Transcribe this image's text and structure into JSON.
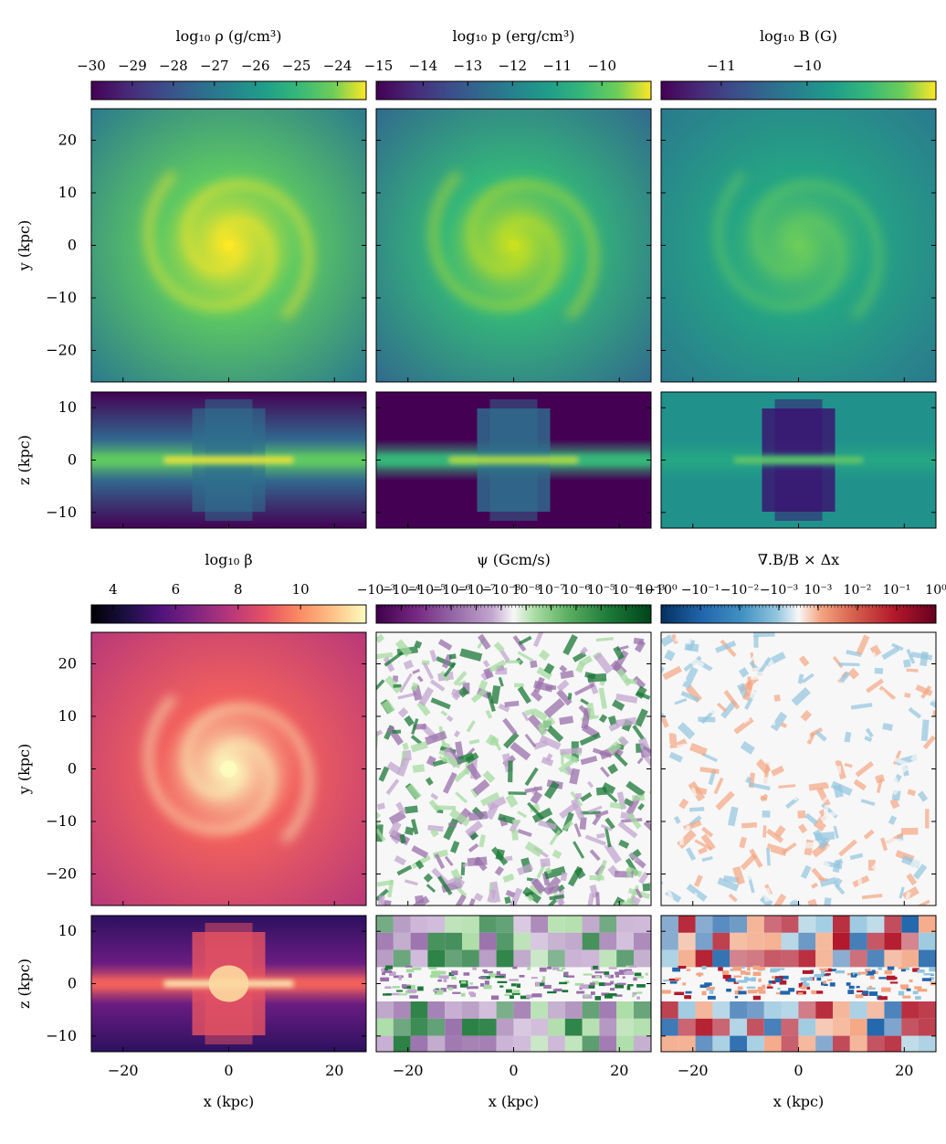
{
  "chart_data": [
    {
      "type": "heatmap",
      "colorbar": {
        "label": "log₁₀ ρ (g/cm³)",
        "ticks": [
          "−30",
          "−29",
          "−28",
          "−27",
          "−26",
          "−25",
          "−24"
        ],
        "tick_values": [
          -30,
          -29,
          -28,
          -27,
          -26,
          -25,
          -24
        ],
        "range": [
          -30,
          -23.3
        ],
        "colormap": "viridis"
      },
      "face_on": {
        "xlim": [
          -26,
          26
        ],
        "ylim": [
          -26,
          26
        ],
        "ylabel": "y (kpc)",
        "yticks": [
          "20",
          "10",
          "0",
          "−10",
          "−20"
        ],
        "ytick_values": [
          20,
          10,
          0,
          -10,
          -20
        ]
      },
      "edge_on": {
        "xlim": [
          -26,
          26
        ],
        "zlim": [
          -13,
          13
        ],
        "ylabel": "z (kpc)",
        "yticks": [
          "10",
          "0",
          "−10"
        ],
        "ytick_values": [
          10,
          0,
          -10
        ]
      },
      "colors": {
        "core": "#fde725",
        "mid": "#5ec962",
        "edge": "#2a788e",
        "bg": "#440154"
      }
    },
    {
      "type": "heatmap",
      "colorbar": {
        "label": "log₁₀ p (erg/cm³)",
        "ticks": [
          "−15",
          "−14",
          "−13",
          "−12",
          "−11",
          "−10"
        ],
        "tick_values": [
          -15,
          -14,
          -13,
          -12,
          -11,
          -10
        ],
        "range": [
          -15.05,
          -8.9
        ],
        "colormap": "viridis"
      },
      "face_on": {
        "xlim": [
          -26,
          26
        ],
        "ylim": [
          -26,
          26
        ]
      },
      "edge_on": {
        "xlim": [
          -26,
          26
        ],
        "zlim": [
          -13,
          13
        ]
      },
      "colors": {
        "core": "#c8e020",
        "mid": "#35b779",
        "edge": "#31688e",
        "bg": "#440154"
      }
    },
    {
      "type": "heatmap",
      "colorbar": {
        "label": "log₁₀ B (G)",
        "ticks": [
          "−11",
          "−10"
        ],
        "tick_values": [
          -11,
          -10
        ],
        "range": [
          -11.7,
          -8.5
        ],
        "colormap": "viridis"
      },
      "face_on": {
        "xlim": [
          -26,
          26
        ],
        "ylim": [
          -26,
          26
        ]
      },
      "edge_on": {
        "xlim": [
          -26,
          26
        ],
        "zlim": [
          -13,
          13
        ]
      },
      "colors": {
        "core": "#6ccd5a",
        "mid": "#25a584",
        "edge": "#2a788e",
        "bg": "#21918c"
      }
    },
    {
      "type": "heatmap",
      "colorbar": {
        "label": "log₁₀ β",
        "ticks": [
          "4",
          "6",
          "8",
          "10"
        ],
        "tick_values": [
          4,
          6,
          8,
          10
        ],
        "range": [
          3.3,
          12.1
        ],
        "colormap": "magma"
      },
      "face_on": {
        "xlim": [
          -26,
          26
        ],
        "ylim": [
          -26,
          26
        ],
        "ylabel": "y (kpc)",
        "yticks": [
          "20",
          "10",
          "0",
          "−10",
          "−20"
        ],
        "ytick_values": [
          20,
          10,
          0,
          -10,
          -20
        ]
      },
      "edge_on": {
        "xlim": [
          -26,
          26
        ],
        "zlim": [
          -13,
          13
        ],
        "ylabel": "z (kpc)",
        "yticks": [
          "10",
          "0",
          "−10"
        ],
        "ytick_values": [
          10,
          0,
          -10
        ],
        "xlabel": "x (kpc)",
        "xticks": [
          "−20",
          "0",
          "20"
        ],
        "xtick_values": [
          -20,
          0,
          20
        ]
      },
      "colors": {
        "core": "#fcfdbf",
        "mid": "#f1605d",
        "edge": "#b73779",
        "bg": "#2c115f"
      }
    },
    {
      "type": "heatmap",
      "colorbar": {
        "label": "ψ (Gcm/s)",
        "ticks": [
          "−10⁻³",
          "−10⁻⁴",
          "−10⁻⁵",
          "−10⁻⁶",
          "−10⁻⁷",
          "−10⁻⁸",
          "10⁻⁸",
          "10⁻⁷",
          "10⁻⁶",
          "10⁻⁵",
          "10⁻⁴",
          "10⁻³"
        ],
        "scale": "symlog",
        "colormap": "PRGn"
      },
      "face_on": {
        "xlim": [
          -26,
          26
        ],
        "ylim": [
          -26,
          26
        ]
      },
      "edge_on": {
        "xlim": [
          -26,
          26
        ],
        "zlim": [
          -13,
          13
        ],
        "xlabel": "x (kpc)",
        "xticks": [
          "−20",
          "0",
          "20"
        ],
        "xtick_values": [
          -20,
          0,
          20
        ]
      },
      "colors": {
        "neg": "#9970ab",
        "negLight": "#c2a5cf",
        "mid": "#f7f7f7",
        "posLight": "#a6dba0",
        "pos": "#1b7837"
      }
    },
    {
      "type": "heatmap",
      "colorbar": {
        "label": "∇.B/B × Δx",
        "ticks": [
          "−10⁰",
          "−10⁻¹",
          "−10⁻²",
          "−10⁻³",
          "10⁻³",
          "10⁻²",
          "10⁻¹",
          "10⁰"
        ],
        "scale": "symlog",
        "colormap": "RdBu_r"
      },
      "face_on": {
        "xlim": [
          -26,
          26
        ],
        "ylim": [
          -26,
          26
        ]
      },
      "edge_on": {
        "xlim": [
          -26,
          26
        ],
        "zlim": [
          -13,
          13
        ],
        "xlabel": "x (kpc)",
        "xticks": [
          "−20",
          "0",
          "20"
        ],
        "xtick_values": [
          -20,
          0,
          20
        ]
      },
      "colors": {
        "neg": "#2166ac",
        "negLight": "#92c5de",
        "mid": "#f7f7f7",
        "posLight": "#f4a582",
        "pos": "#b2182b"
      }
    }
  ]
}
